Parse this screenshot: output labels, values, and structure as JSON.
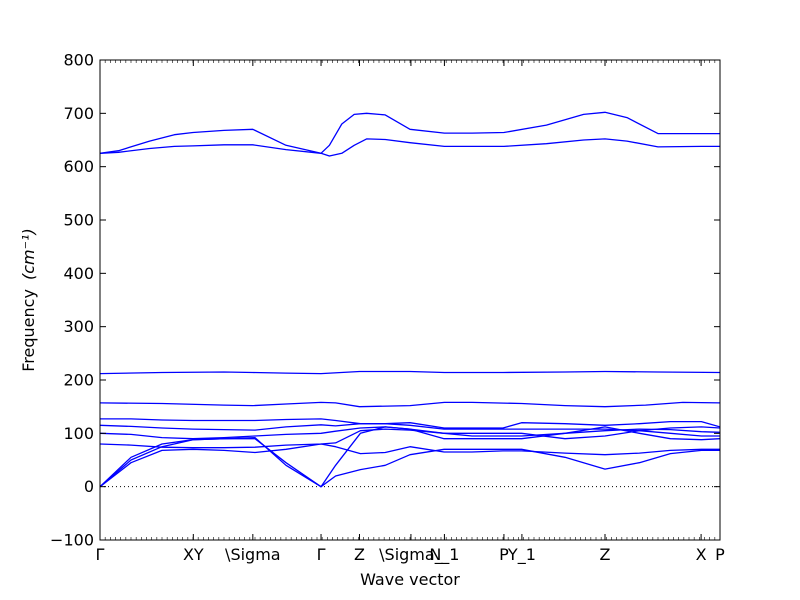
{
  "chart_data": {
    "type": "line",
    "xlabel": "Wave vector",
    "ylabel": "Frequency",
    "ylabel_unit": "(cm⁻¹)",
    "ylim": [
      -100,
      800
    ],
    "yticks": [
      -100,
      0,
      100,
      200,
      300,
      400,
      500,
      600,
      700,
      800
    ],
    "zero_line": true,
    "line_color": "#0000ff",
    "xrange": [
      0,
      1
    ],
    "kpoints": [
      {
        "label": "Γ",
        "pos": 0.0
      },
      {
        "label": "XY",
        "pos": 0.1505
      },
      {
        "label": "\\Sigma",
        "pos": 0.2465
      },
      {
        "label": "Γ",
        "pos": 0.3565
      },
      {
        "label": "Z",
        "pos": 0.4185
      },
      {
        "label": "\\Sigma_",
        "pos": 0.5015
      },
      {
        "label": "N_1",
        "pos": 0.5555
      },
      {
        "label": "P",
        "pos": 0.6515
      },
      {
        "label": "Y_1",
        "pos": 0.6805
      },
      {
        "label": "Z",
        "pos": 0.8145
      },
      {
        "label": "X",
        "pos": 0.9695
      },
      {
        "label": "P",
        "pos": 1.0
      }
    ],
    "series": [
      {
        "x": [
          0,
          0.05,
          0.1,
          0.15,
          0.2,
          0.25,
          0.3,
          0.3565,
          0.38,
          0.42,
          0.46,
          0.5,
          0.555,
          0.6,
          0.65,
          0.68,
          0.75,
          0.8145,
          0.87,
          0.92,
          0.97,
          1.0
        ],
        "y": [
          0,
          45,
          68,
          70,
          68,
          64,
          70,
          80,
          75,
          62,
          64,
          75,
          65,
          65,
          67,
          67,
          63,
          60,
          63,
          68,
          70,
          70
        ]
      },
      {
        "x": [
          0,
          0.05,
          0.1,
          0.15,
          0.2,
          0.25,
          0.3,
          0.3565,
          0.38,
          0.42,
          0.46,
          0.5,
          0.555,
          0.6,
          0.65,
          0.68,
          0.75,
          0.8145,
          0.87,
          0.92,
          0.97,
          1.0
        ],
        "y": [
          0,
          50,
          75,
          88,
          90,
          92,
          40,
          0,
          20,
          32,
          40,
          60,
          70,
          70,
          70,
          70,
          55,
          33,
          45,
          62,
          68,
          68
        ]
      },
      {
        "x": [
          0,
          0.05,
          0.1,
          0.15,
          0.2,
          0.25,
          0.3,
          0.3565,
          0.38,
          0.42,
          0.46,
          0.5,
          0.555,
          0.6,
          0.65,
          0.68,
          0.75,
          0.8145,
          0.87,
          0.92,
          0.97,
          1.0
        ],
        "y": [
          0,
          55,
          80,
          88,
          90,
          90,
          45,
          0,
          40,
          100,
          112,
          108,
          90,
          90,
          90,
          90,
          100,
          112,
          100,
          90,
          88,
          90
        ]
      },
      {
        "x": [
          0,
          0.05,
          0.1,
          0.15,
          0.2,
          0.25,
          0.3,
          0.3565,
          0.38,
          0.42,
          0.46,
          0.5,
          0.555,
          0.6,
          0.65,
          0.68,
          0.75,
          0.8145,
          0.87,
          0.92,
          0.97,
          1.0
        ],
        "y": [
          80,
          78,
          74,
          73,
          73,
          74,
          78,
          80,
          82,
          105,
          108,
          106,
          100,
          95,
          95,
          95,
          100,
          105,
          108,
          107,
          103,
          102
        ]
      },
      {
        "x": [
          0,
          0.05,
          0.1,
          0.15,
          0.2,
          0.25,
          0.3,
          0.3565,
          0.38,
          0.42,
          0.46,
          0.5,
          0.555,
          0.6,
          0.65,
          0.68,
          0.75,
          0.8145,
          0.87,
          0.92,
          0.97,
          1.0
        ],
        "y": [
          100,
          98,
          92,
          90,
          92,
          95,
          98,
          100,
          104,
          110,
          112,
          108,
          100,
          100,
          100,
          100,
          90,
          95,
          105,
          110,
          112,
          110
        ]
      },
      {
        "x": [
          0,
          0.05,
          0.1,
          0.15,
          0.2,
          0.25,
          0.3,
          0.3565,
          0.38,
          0.42,
          0.46,
          0.5,
          0.555,
          0.6,
          0.65,
          0.68,
          0.75,
          0.8145,
          0.87,
          0.92,
          0.97,
          1.0
        ],
        "y": [
          115,
          113,
          110,
          108,
          107,
          106,
          112,
          116,
          114,
          118,
          118,
          115,
          108,
          108,
          108,
          108,
          108,
          108,
          105,
          100,
          95,
          95
        ]
      },
      {
        "x": [
          0,
          0.05,
          0.1,
          0.15,
          0.2,
          0.25,
          0.3,
          0.3565,
          0.38,
          0.42,
          0.46,
          0.5,
          0.555,
          0.6,
          0.65,
          0.68,
          0.75,
          0.8145,
          0.87,
          0.92,
          0.97,
          1.0
        ],
        "y": [
          127,
          127,
          125,
          124,
          124,
          124,
          126,
          127,
          124,
          118,
          118,
          120,
          110,
          110,
          110,
          120,
          118,
          115,
          118,
          122,
          122,
          112
        ]
      },
      {
        "x": [
          0,
          0.1,
          0.2,
          0.2465,
          0.3,
          0.3565,
          0.38,
          0.4185,
          0.5,
          0.5555,
          0.6,
          0.68,
          0.75,
          0.8145,
          0.88,
          0.94,
          1.0
        ],
        "y": [
          157,
          156,
          153,
          152,
          155,
          158,
          157,
          150,
          152,
          158,
          158,
          156,
          152,
          150,
          153,
          158,
          157
        ]
      },
      {
        "x": [
          0,
          0.1,
          0.2,
          0.2465,
          0.3,
          0.3565,
          0.4185,
          0.5,
          0.5555,
          0.65,
          0.75,
          0.8145,
          0.9,
          1.0
        ],
        "y": [
          212,
          214,
          215,
          214,
          213,
          212,
          216,
          216,
          214,
          214,
          215,
          216,
          215,
          214
        ]
      },
      {
        "x": [
          0,
          0.03,
          0.08,
          0.12,
          0.15,
          0.2,
          0.2465,
          0.3,
          0.3565,
          0.37,
          0.39,
          0.41,
          0.43,
          0.46,
          0.5,
          0.5555,
          0.6,
          0.6515,
          0.72,
          0.78,
          0.8145,
          0.85,
          0.9,
          0.9695,
          1.0
        ],
        "y": [
          625,
          627,
          634,
          638,
          639,
          641,
          641,
          632,
          625,
          620,
          625,
          640,
          652,
          651,
          645,
          638,
          638,
          638,
          643,
          650,
          652,
          648,
          637,
          638,
          638
        ]
      },
      {
        "x": [
          0,
          0.03,
          0.08,
          0.12,
          0.15,
          0.2,
          0.2465,
          0.3,
          0.3565,
          0.37,
          0.39,
          0.41,
          0.43,
          0.46,
          0.5,
          0.5555,
          0.6,
          0.6515,
          0.72,
          0.78,
          0.8145,
          0.85,
          0.9,
          0.9695,
          1.0
        ],
        "y": [
          625,
          630,
          648,
          660,
          664,
          668,
          670,
          640,
          625,
          640,
          680,
          698,
          700,
          697,
          670,
          663,
          663,
          664,
          678,
          698,
          702,
          692,
          662,
          662,
          662
        ]
      }
    ]
  }
}
